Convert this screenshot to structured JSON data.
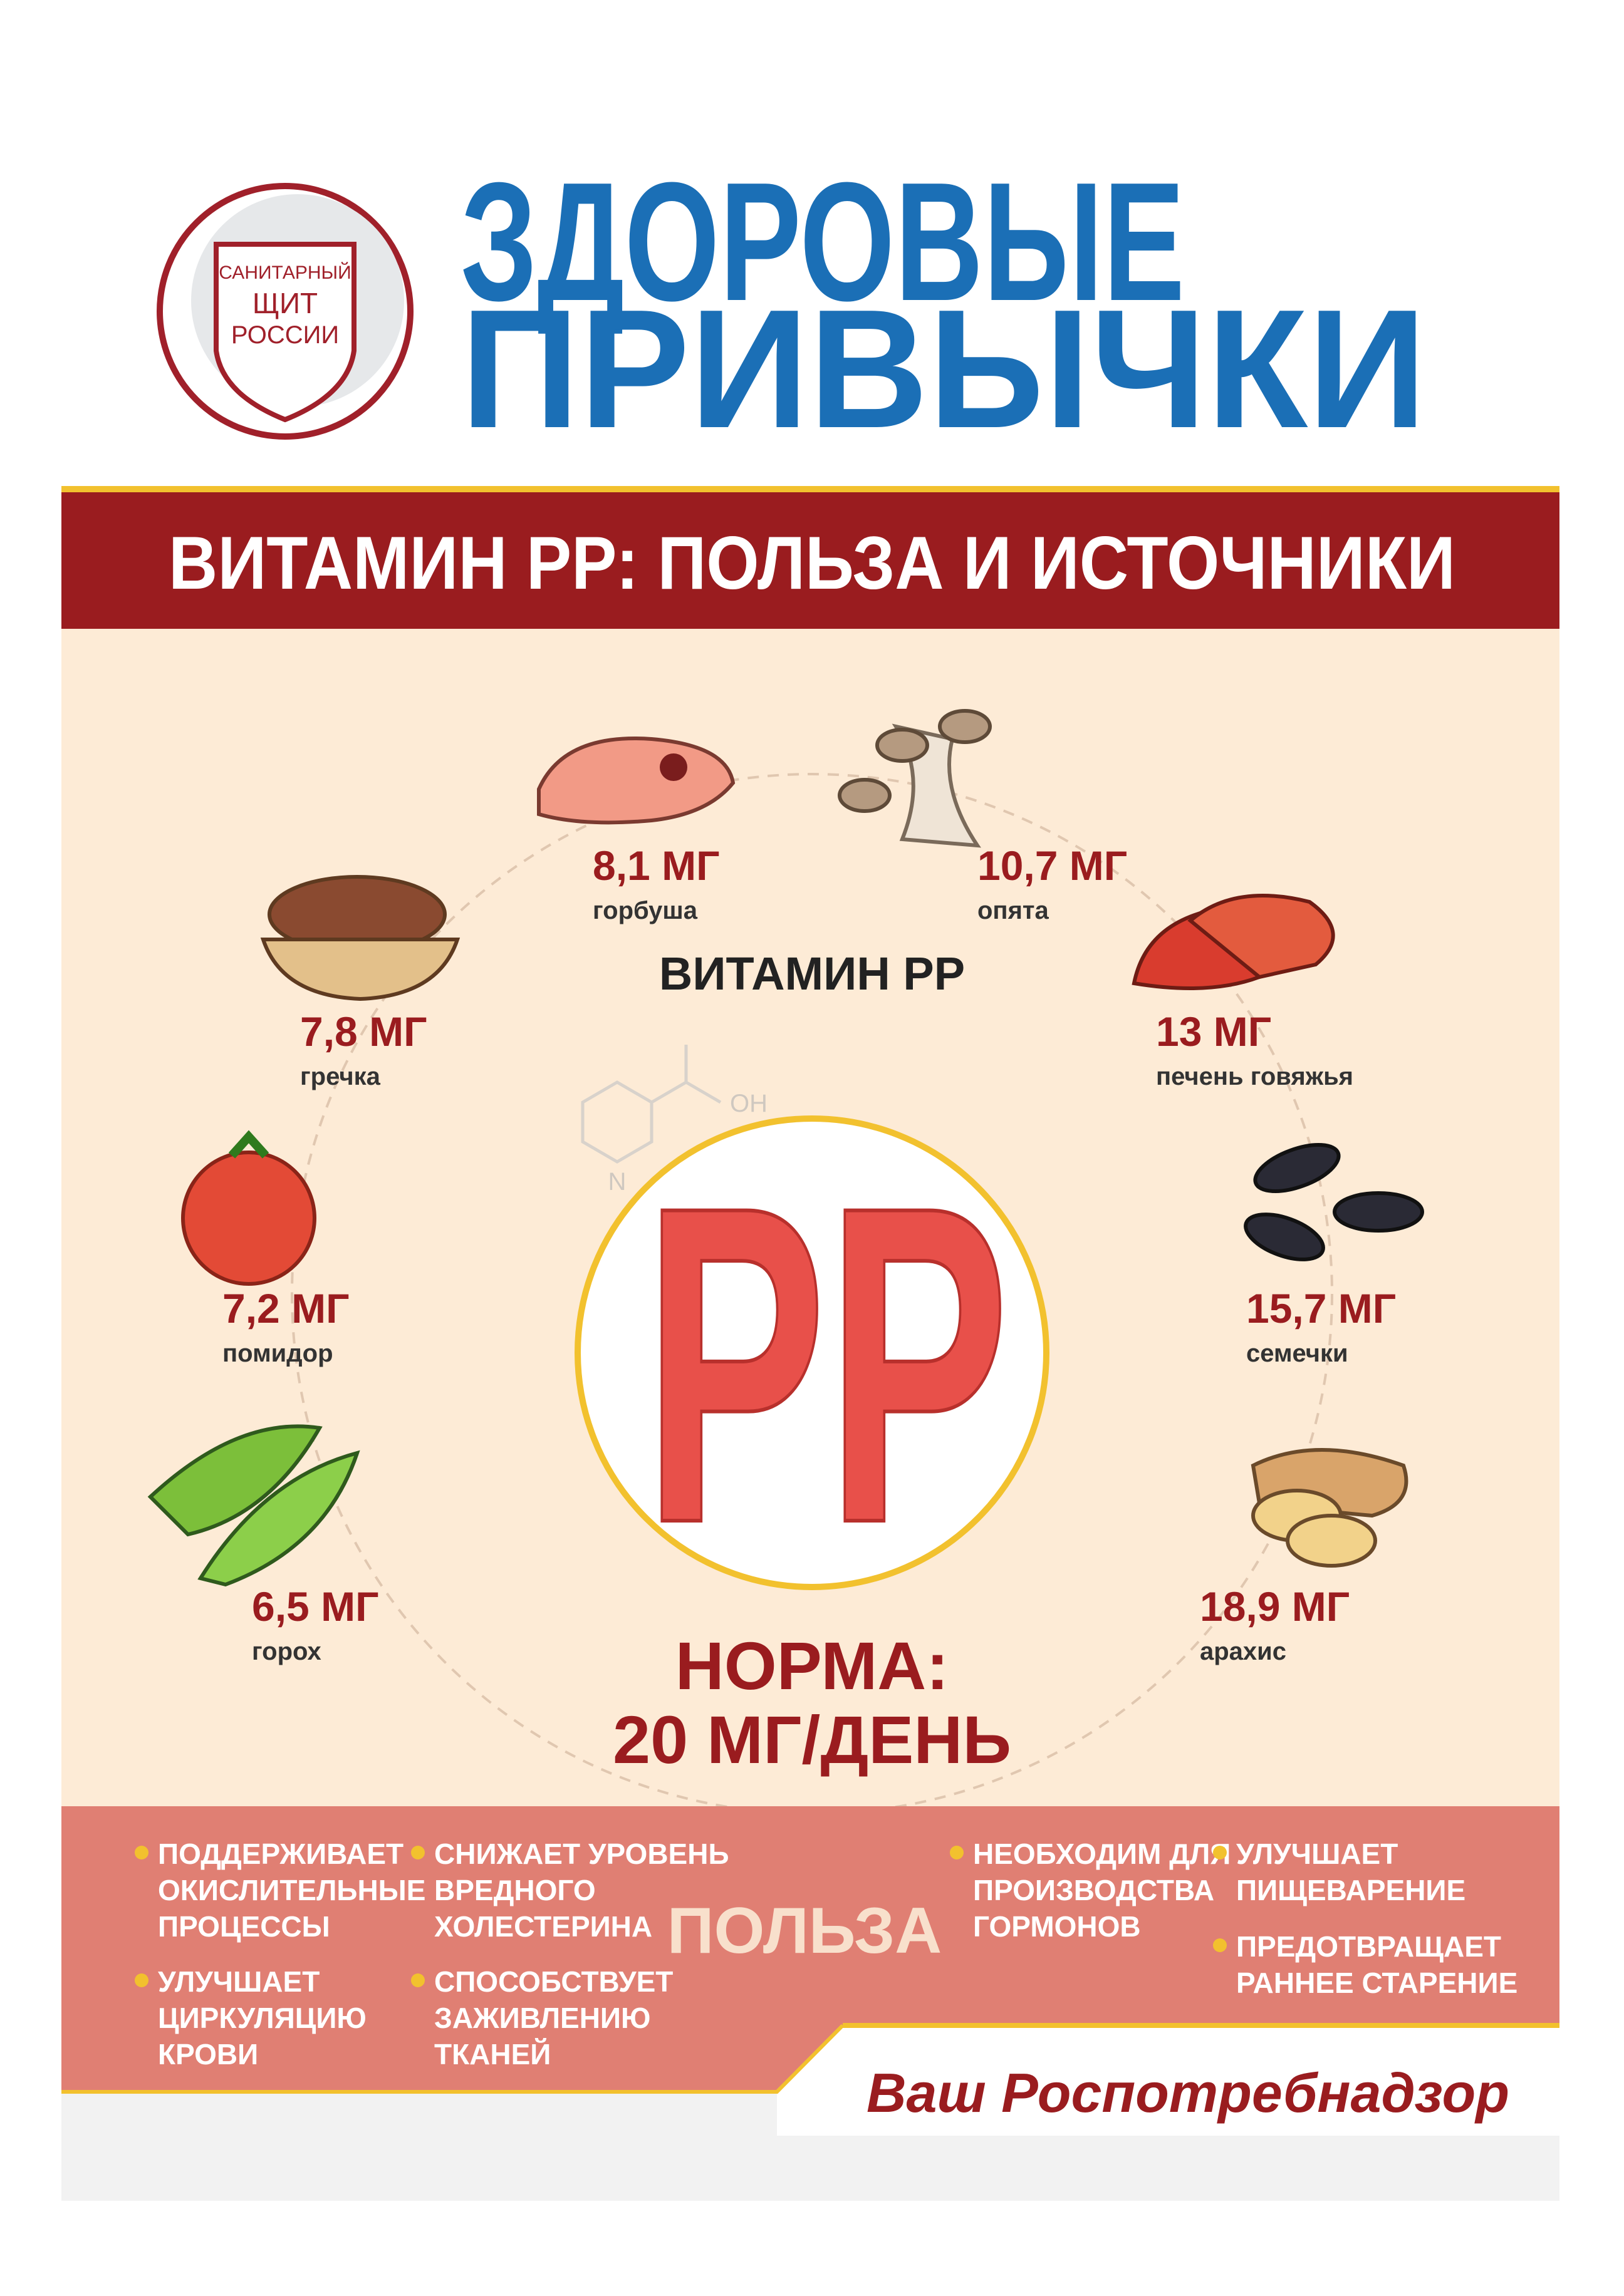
{
  "header": {
    "logo": [
      "САНИТАРНЫЙ",
      "ЩИТ",
      "РОССИИ"
    ],
    "title": [
      "ЗДОРОВЫЕ",
      "ПРИВЫЧКИ"
    ]
  },
  "banner": "ВИТАМИН РР: ПОЛЬЗА И ИСТОЧНИКИ",
  "center": {
    "label": "ВИТАМИН РР",
    "molecule_n": "N",
    "molecule_oh": "OH",
    "letters": "РР",
    "norm": [
      "НОРМА:",
      "20 МГ/ДЕНЬ"
    ]
  },
  "sources": [
    {
      "amount": "8,1 МГ",
      "name": "горбуша"
    },
    {
      "amount": "10,7 МГ",
      "name": "опята"
    },
    {
      "amount": "13 МГ",
      "name": "печень говяжья"
    },
    {
      "amount": "15,7 МГ",
      "name": "семечки"
    },
    {
      "amount": "18,9 МГ",
      "name": "арахис"
    },
    {
      "amount": "6,5 МГ",
      "name": "горох"
    },
    {
      "amount": "7,2 МГ",
      "name": "помидор"
    },
    {
      "amount": "7,8 МГ",
      "name": "гречка"
    }
  ],
  "benefits": {
    "title": "ПОЛЬЗА",
    "items": [
      [
        "ПОДДЕРЖИВАЕТ",
        "ОКИСЛИТЕЛЬНЫЕ",
        "ПРОЦЕССЫ"
      ],
      [
        "УЛУЧШАЕТ",
        "ЦИРКУЛЯЦИЮ",
        "КРОВИ"
      ],
      [
        "СНИЖАЕТ УРОВЕНЬ",
        "ВРЕДНОГО",
        "ХОЛЕСТЕРИНА"
      ],
      [
        "СПОСОБСТВУЕТ",
        "ЗАЖИВЛЕНИЮ",
        "ТКАНЕЙ"
      ],
      [
        "НЕОБХОДИМ ДЛЯ",
        "ПРОИЗВОДСТВА",
        "ГОРМОНОВ"
      ],
      [
        "УЛУЧШАЕТ",
        "ПИЩЕВАРЕНИЕ"
      ],
      [
        "ПРЕДОТВРАЩАЕТ",
        "РАННЕЕ СТАРЕНИЕ"
      ]
    ]
  },
  "footer": "Ваш Роспотребнадзор"
}
